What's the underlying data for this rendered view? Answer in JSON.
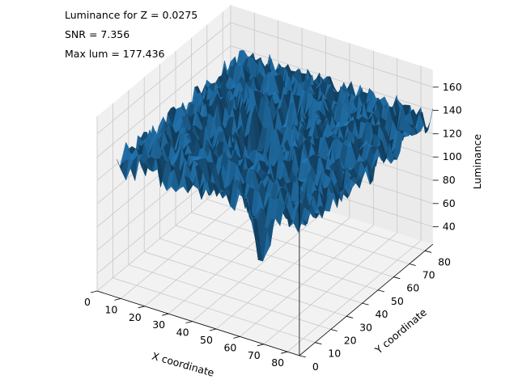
{
  "chart_data": {
    "type": "surface",
    "annotations": [
      "Luminance for Z = 0.0275",
      "SNR = 7.356",
      "Max lum = 177.436"
    ],
    "xlabel": "X coordinate",
    "ylabel": "Y coordinate",
    "zlabel": "Luminance",
    "x_ticks": [
      "0",
      "10",
      "20",
      "30",
      "40",
      "50",
      "60",
      "70",
      "80"
    ],
    "y_ticks": [
      "0",
      "10",
      "20",
      "30",
      "40",
      "50",
      "60",
      "70",
      "80"
    ],
    "z_ticks": [
      "40",
      "60",
      "80",
      "100",
      "120",
      "140",
      "160"
    ],
    "xlim": [
      0,
      85
    ],
    "ylim": [
      0,
      85
    ],
    "zlim": [
      25,
      175
    ],
    "grid": true,
    "surface_color": "#1f77b4",
    "surface_description": "Noisy plateau at luminance ~125-160 across the whole grid with a sharp well near the centre (x≈40, y≈45) dropping to ~30",
    "surface_summary": {
      "baseline_luminance": 140,
      "noise_amplitude": 12,
      "dip_center_x": 40,
      "dip_center_y": 45,
      "dip_min_luminance": 30,
      "max_luminance": 177.436
    }
  }
}
